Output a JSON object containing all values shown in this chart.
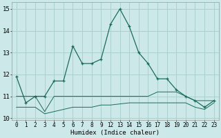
{
  "xlabel": "Humidex (Indice chaleur)",
  "bg_color": "#cce8e8",
  "grid_color": "#aad0d0",
  "line_color": "#1a6b5a",
  "ylim": [
    9.9,
    15.3
  ],
  "yticks": [
    10,
    11,
    12,
    13,
    14,
    15
  ],
  "xlabels": [
    "0",
    "1",
    "2",
    "3",
    "4",
    "5",
    "6",
    "7",
    "8",
    "9",
    "12",
    "13",
    "14",
    "15",
    "16",
    "17",
    "18",
    "19",
    "20",
    "21",
    "22",
    "23"
  ],
  "main_y": [
    11.9,
    10.7,
    11.0,
    11.0,
    11.7,
    11.7,
    13.3,
    12.5,
    12.5,
    12.7,
    14.3,
    15.0,
    14.2,
    13.0,
    12.5,
    11.8,
    11.8,
    11.3,
    11.0,
    10.8,
    10.5,
    10.8
  ],
  "flat1_y": [
    11.0,
    11.0,
    11.0,
    10.3,
    11.0,
    11.0,
    11.0,
    11.0,
    11.0,
    11.0,
    11.0,
    11.0,
    11.0,
    11.0,
    11.0,
    11.2,
    11.2,
    11.2,
    11.0,
    10.8,
    10.8,
    10.8
  ],
  "flat2_y": [
    10.5,
    10.5,
    10.5,
    10.2,
    10.3,
    10.4,
    10.5,
    10.5,
    10.5,
    10.6,
    10.6,
    10.65,
    10.7,
    10.7,
    10.7,
    10.7,
    10.7,
    10.7,
    10.7,
    10.5,
    10.4,
    10.7
  ]
}
